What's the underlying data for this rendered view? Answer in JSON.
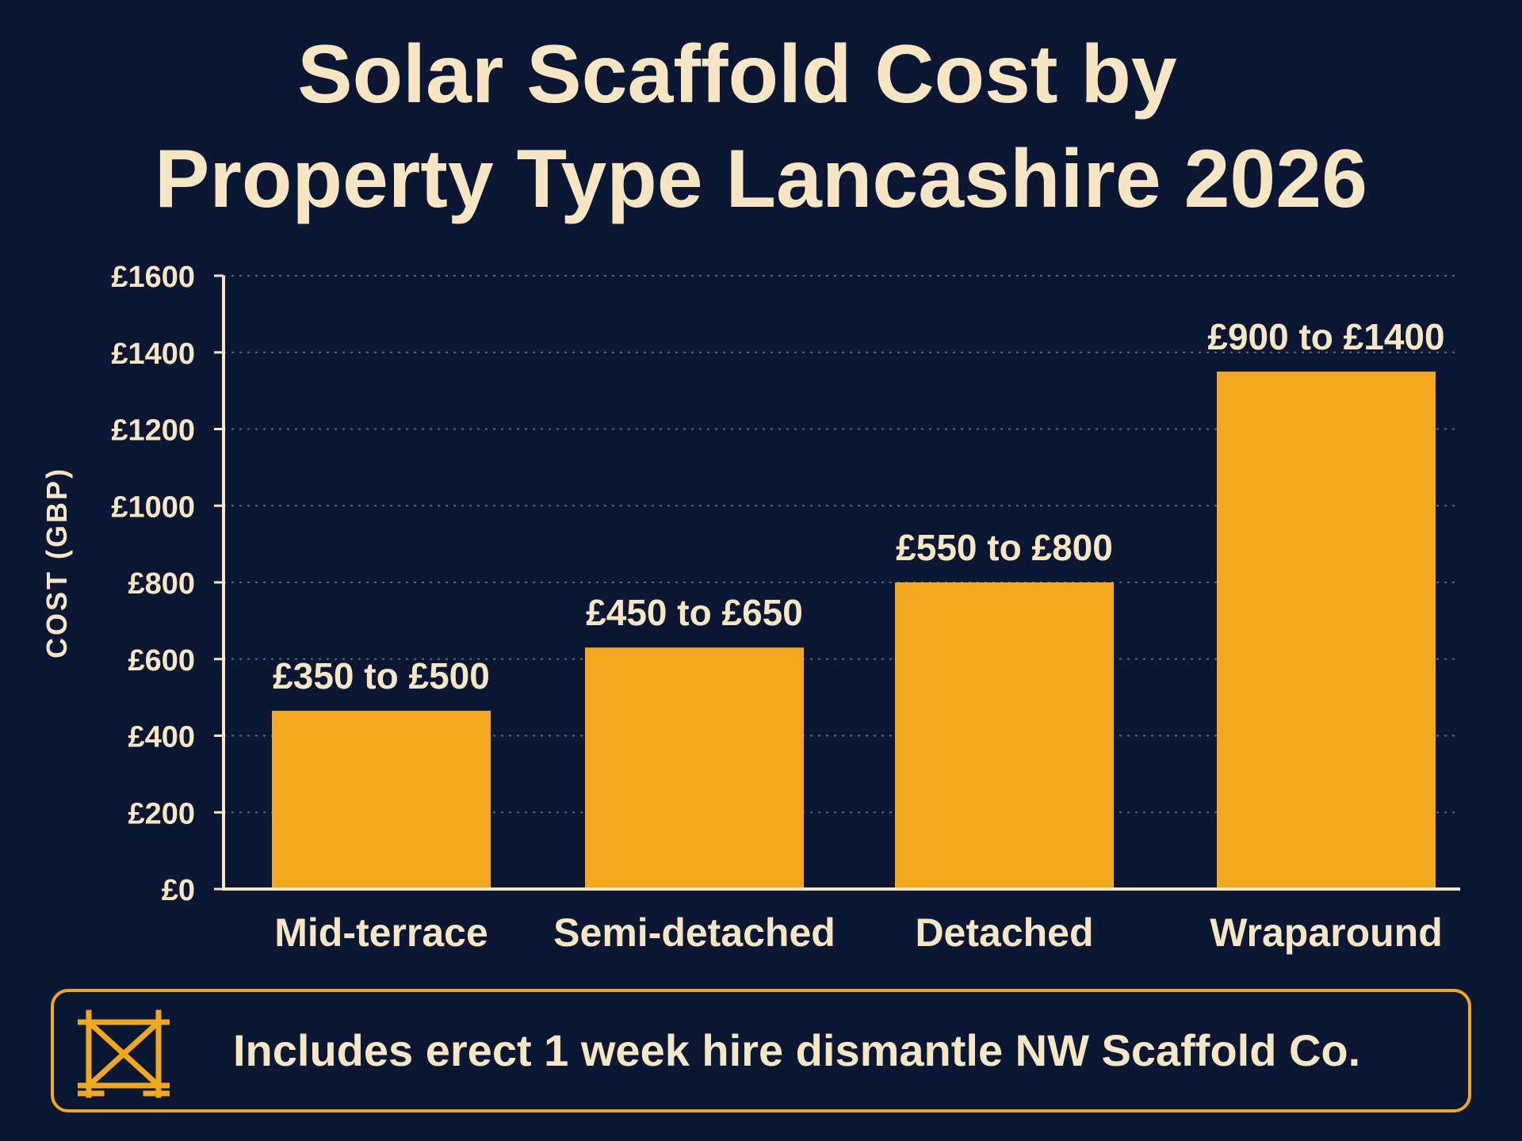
{
  "chart_data": {
    "type": "bar",
    "title_lines": [
      "Solar Scaffold Cost by",
      "Property Type Lancashire 2026"
    ],
    "ylabel": "COST (GBP)",
    "xlabel": "",
    "ylim": [
      0,
      1600
    ],
    "yticks": [
      0,
      200,
      400,
      600,
      800,
      1000,
      1200,
      1400,
      1600
    ],
    "ytick_labels": [
      "£0",
      "£200",
      "£400",
      "£600",
      "£800",
      "£1000",
      "£1200",
      "£1400",
      "£1600"
    ],
    "categories": [
      "Mid-terrace",
      "Semi-detached",
      "Detached",
      "Wraparound"
    ],
    "values": [
      465,
      630,
      800,
      1350
    ],
    "data_labels": [
      "£350 to £500",
      "£450 to £650",
      "£550 to £800",
      "£900 to £1400"
    ],
    "grid": true,
    "legend": "none"
  },
  "footer": {
    "icon": "scaffold-icon",
    "text": "Includes erect 1 week hire dismantle NW Scaffold Co."
  },
  "colors": {
    "background": "#0b1733",
    "bar": "#f4a81d",
    "text": "#f6e6c4",
    "accent": "#f0a91e",
    "grid": "#5a6580"
  }
}
